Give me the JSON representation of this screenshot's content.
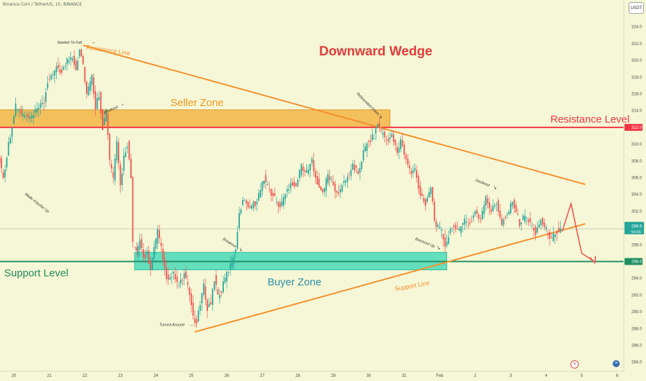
{
  "header": {
    "symbol": "Binance Coin / TetherUS, 1h, BINANCE",
    "currency": "USDT"
  },
  "icons": {
    "event": "lightning-icon",
    "country": "us-flag-icon"
  },
  "colors": {
    "bull": "#26a69a",
    "bear": "#ef5350",
    "wedge": "#f5902c",
    "resistance": "#f23645",
    "support": "#1f8f62",
    "seller_zone": "#f2b13d",
    "buyer_zone": "#40d8b6"
  },
  "chart_data": {
    "type": "candlestick",
    "title": "Downward Wedge",
    "xlabel": "",
    "ylabel": "",
    "x_ticks": [
      "20",
      "21",
      "22",
      "23",
      "24",
      "25",
      "26",
      "27",
      "28",
      "29",
      "30",
      "31",
      "Feb",
      "2",
      "3",
      "4",
      "5",
      "6"
    ],
    "y_ticks": [
      284.0,
      286.0,
      288.0,
      290.0,
      292.0,
      294.0,
      296.0,
      298.0,
      300.0,
      302.0,
      304.0,
      306.0,
      308.0,
      310.0,
      312.0,
      314.0,
      316.0,
      318.0,
      320.0,
      322.0,
      324.0
    ],
    "ylim": [
      283.0,
      326.0
    ],
    "grid": false,
    "levels": [
      {
        "name": "Resistance Level",
        "value": 312.0,
        "label": "312.0"
      },
      {
        "name": "Support Level",
        "value": 296.0,
        "label": "296.0"
      }
    ],
    "current_price": {
      "value": 299.9,
      "label": "299.9",
      "countdown": "54:45"
    },
    "zones": [
      {
        "name": "Seller Zone",
        "from_day": 19.6,
        "to_day": 30.6,
        "low": 312.0,
        "high": 314.1
      },
      {
        "name": "Buyer Zone",
        "from_day": 23.4,
        "to_day": 32.2,
        "low": 295.0,
        "high": 297.1
      }
    ],
    "trendlines": [
      {
        "name": "Resistance Line",
        "from": [
          21.95,
          321.8
        ],
        "to": [
          36.1,
          305.2
        ]
      },
      {
        "name": "Support Line",
        "from": [
          25.1,
          287.6
        ],
        "to": [
          36.1,
          300.5
        ]
      }
    ],
    "projection": [
      [
        35.45,
        299.6
      ],
      [
        35.7,
        302.9
      ],
      [
        36.0,
        297.0
      ],
      [
        36.35,
        296.0
      ]
    ],
    "annotations": [
      {
        "text": "Started To Fall",
        "day": 21.22,
        "price": 322.0
      },
      {
        "text": "Breakout",
        "day": 22.55,
        "price": 313.6
      },
      {
        "text": "Made Impulse Up",
        "day": 20.3,
        "price": 304.0
      },
      {
        "text": "Rebounded Down",
        "day": 29.65,
        "price": 316.0
      },
      {
        "text": "Breakout",
        "day": 25.88,
        "price": 298.6
      },
      {
        "text": "Bounced Up",
        "day": 31.3,
        "price": 298.6
      },
      {
        "text": "Declined",
        "day": 33.0,
        "price": 305.6
      },
      {
        "text": "Tunred Around",
        "day": 24.1,
        "price": 288.3
      }
    ],
    "labels": {
      "resistance_line": "Resistance Line",
      "support_line": "Support Line",
      "seller_zone": "Seller Zone",
      "buyer_zone": "Buyer Zone",
      "resistance_level": "Resistance Level",
      "support_level": "Support Level"
    },
    "price_path": [
      [
        19.6,
        309.0
      ],
      [
        19.75,
        306.0
      ],
      [
        19.9,
        310.0
      ],
      [
        20.1,
        314.5
      ],
      [
        20.3,
        313.5
      ],
      [
        20.5,
        313.0
      ],
      [
        20.7,
        314.0
      ],
      [
        20.9,
        315.0
      ],
      [
        21.0,
        317.5
      ],
      [
        21.15,
        318.0
      ],
      [
        21.25,
        319.5
      ],
      [
        21.4,
        318.5
      ],
      [
        21.55,
        320.0
      ],
      [
        21.7,
        320.5
      ],
      [
        21.8,
        319.0
      ],
      [
        21.9,
        321.5
      ],
      [
        22.0,
        319.5
      ],
      [
        22.1,
        316.0
      ],
      [
        22.25,
        318.0
      ],
      [
        22.35,
        314.5
      ],
      [
        22.45,
        316.0
      ],
      [
        22.55,
        312.0
      ],
      [
        22.65,
        314.0
      ],
      [
        22.75,
        308.0
      ],
      [
        22.85,
        306.0
      ],
      [
        22.95,
        310.0
      ],
      [
        23.05,
        305.0
      ],
      [
        23.15,
        308.5
      ],
      [
        23.25,
        310.0
      ],
      [
        23.35,
        306.0
      ],
      [
        23.42,
        298.0
      ],
      [
        23.5,
        297.0
      ],
      [
        23.6,
        298.5
      ],
      [
        23.7,
        296.5
      ],
      [
        23.8,
        297.0
      ],
      [
        23.9,
        295.0
      ],
      [
        24.0,
        297.5
      ],
      [
        24.1,
        299.5
      ],
      [
        24.2,
        297.5
      ],
      [
        24.3,
        295.0
      ],
      [
        24.4,
        293.5
      ],
      [
        24.55,
        294.5
      ],
      [
        24.7,
        293.0
      ],
      [
        24.85,
        294.5
      ],
      [
        25.0,
        292.0
      ],
      [
        25.1,
        289.5
      ],
      [
        25.2,
        288.5
      ],
      [
        25.3,
        291.0
      ],
      [
        25.4,
        293.0
      ],
      [
        25.5,
        290.5
      ],
      [
        25.6,
        291.0
      ],
      [
        25.7,
        294.0
      ],
      [
        25.8,
        292.0
      ],
      [
        25.9,
        292.5
      ],
      [
        26.0,
        294.0
      ],
      [
        26.1,
        295.0
      ],
      [
        26.2,
        296.0
      ],
      [
        26.3,
        297.5
      ],
      [
        26.4,
        302.0
      ],
      [
        26.55,
        303.5
      ],
      [
        26.7,
        302.5
      ],
      [
        26.85,
        303.0
      ],
      [
        27.0,
        304.5
      ],
      [
        27.1,
        306.0
      ],
      [
        27.25,
        304.5
      ],
      [
        27.4,
        303.5
      ],
      [
        27.55,
        302.5
      ],
      [
        27.7,
        304.0
      ],
      [
        27.85,
        305.5
      ],
      [
        28.0,
        305.0
      ],
      [
        28.15,
        307.5
      ],
      [
        28.3,
        306.5
      ],
      [
        28.45,
        308.0
      ],
      [
        28.6,
        305.5
      ],
      [
        28.75,
        304.0
      ],
      [
        28.9,
        306.5
      ],
      [
        29.0,
        305.5
      ],
      [
        29.15,
        304.0
      ],
      [
        29.3,
        305.0
      ],
      [
        29.45,
        306.0
      ],
      [
        29.6,
        307.5
      ],
      [
        29.75,
        306.5
      ],
      [
        29.9,
        309.0
      ],
      [
        30.05,
        310.5
      ],
      [
        30.2,
        311.0
      ],
      [
        30.3,
        312.5
      ],
      [
        30.4,
        311.5
      ],
      [
        30.55,
        310.5
      ],
      [
        30.7,
        311.0
      ],
      [
        30.85,
        309.0
      ],
      [
        30.95,
        310.5
      ],
      [
        31.1,
        308.0
      ],
      [
        31.25,
        306.5
      ],
      [
        31.35,
        307.0
      ],
      [
        31.5,
        304.0
      ],
      [
        31.65,
        303.0
      ],
      [
        31.8,
        305.0
      ],
      [
        31.9,
        301.0
      ],
      [
        32.0,
        300.0
      ],
      [
        32.1,
        299.5
      ],
      [
        32.2,
        298.0
      ],
      [
        32.3,
        299.0
      ],
      [
        32.45,
        300.5
      ],
      [
        32.6,
        299.5
      ],
      [
        32.75,
        301.0
      ],
      [
        32.9,
        300.5
      ],
      [
        33.05,
        302.0
      ],
      [
        33.2,
        301.0
      ],
      [
        33.35,
        303.5
      ],
      [
        33.5,
        302.0
      ],
      [
        33.65,
        303.0
      ],
      [
        33.8,
        300.5
      ],
      [
        33.9,
        301.5
      ],
      [
        34.0,
        302.0
      ],
      [
        34.1,
        303.5
      ],
      [
        34.2,
        302.0
      ],
      [
        34.3,
        300.5
      ],
      [
        34.45,
        301.5
      ],
      [
        34.6,
        300.5
      ],
      [
        34.75,
        299.5
      ],
      [
        34.9,
        301.0
      ],
      [
        35.0,
        300.0
      ],
      [
        35.1,
        299.5
      ],
      [
        35.2,
        298.5
      ],
      [
        35.3,
        299.5
      ],
      [
        35.45,
        299.9
      ]
    ]
  }
}
